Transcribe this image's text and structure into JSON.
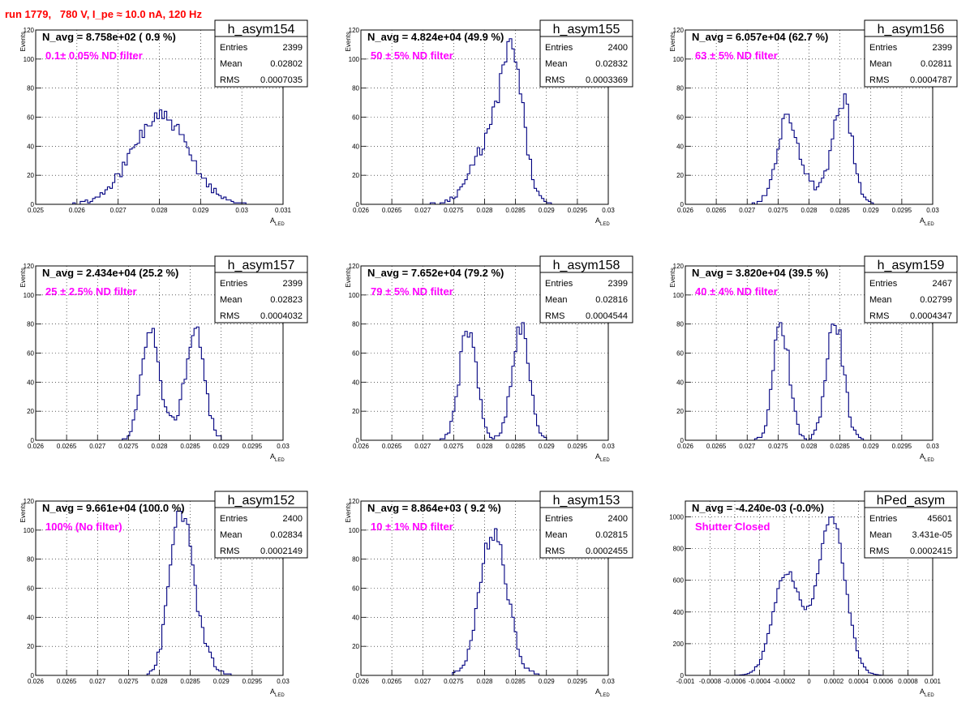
{
  "run_title": "run 1779,   780 V, I_pe ≈ 10.0 nA, 120 Hz",
  "colors": {
    "histogram": "#000080",
    "annotation": "#ff00ff",
    "title": "#ff0000",
    "grid": "#000000"
  },
  "stats_labels": {
    "entries": "Entries",
    "mean": "Mean",
    "rms": "RMS"
  },
  "chart_data": [
    {
      "type": "histogram",
      "hist_name": "h_asym154",
      "n_avg": "N_avg = 8.758e+02 ( 0.9 %)",
      "annotation": "0.1± 0.05% ND filter",
      "entries": "2399",
      "mean": "0.02802",
      "rms": "0.0007035",
      "xlabel": "A",
      "xlabel_sub": "LED",
      "ylabel": "Events",
      "xlim": [
        0.025,
        0.031
      ],
      "ylim": [
        0,
        120
      ],
      "xticks": [
        "0.025",
        "0.026",
        "0.027",
        "0.028",
        "0.029",
        "0.03",
        "0.031"
      ],
      "yticks": [
        "0",
        "20",
        "40",
        "60",
        "80",
        "100",
        "120"
      ],
      "grid": true,
      "mean_value": 0.02802,
      "rms_value": 0.0007035,
      "peak": 67,
      "peaks": [
        {
          "mu": 0.02802,
          "sigma": 0.00068,
          "h": 60
        }
      ],
      "seed": 154
    },
    {
      "type": "histogram",
      "hist_name": "h_asym155",
      "n_avg": "N_avg = 4.824e+04 (49.9 %)",
      "annotation": "50 ± 5% ND filter",
      "entries": "2400",
      "mean": "0.02832",
      "rms": "0.0003369",
      "xlabel": "A",
      "xlabel_sub": "LED",
      "ylabel": "Events",
      "xlim": [
        0.026,
        0.03
      ],
      "ylim": [
        0,
        120
      ],
      "xticks": [
        "0.026",
        "0.0265",
        "0.027",
        "0.0275",
        "0.028",
        "0.0285",
        "0.029",
        "0.0295",
        "0.03"
      ],
      "yticks": [
        "0",
        "20",
        "40",
        "60",
        "80",
        "100",
        "120"
      ],
      "grid": true,
      "peaks": [
        {
          "mu": 0.02845,
          "sigma": 0.00018,
          "h": 85
        },
        {
          "mu": 0.0281,
          "sigma": 0.0003,
          "h": 42
        }
      ],
      "seed": 155
    },
    {
      "type": "histogram",
      "hist_name": "h_asym156",
      "n_avg": "N_avg = 6.057e+04 (62.7 %)",
      "annotation": "63 ± 5% ND filter",
      "entries": "2399",
      "mean": "0.02811",
      "rms": "0.0004787",
      "xlabel": "A",
      "xlabel_sub": "LED",
      "ylabel": "Events",
      "xlim": [
        0.026,
        0.03
      ],
      "ylim": [
        0,
        120
      ],
      "xticks": [
        "0.026",
        "0.0265",
        "0.027",
        "0.0275",
        "0.028",
        "0.0285",
        "0.029",
        "0.0295",
        "0.03"
      ],
      "yticks": [
        "0",
        "20",
        "40",
        "60",
        "80",
        "100",
        "120"
      ],
      "grid": true,
      "peaks": [
        {
          "mu": 0.02765,
          "sigma": 0.00017,
          "h": 58
        },
        {
          "mu": 0.02855,
          "sigma": 0.00015,
          "h": 68
        },
        {
          "mu": 0.0281,
          "sigma": 0.0003,
          "h": 10
        }
      ],
      "seed": 156
    },
    {
      "type": "histogram",
      "hist_name": "h_asym157",
      "n_avg": "N_avg = 2.434e+04 (25.2 %)",
      "annotation": "25 ± 2.5% ND filter",
      "entries": "2399",
      "mean": "0.02823",
      "rms": "0.0004032",
      "xlabel": "A",
      "xlabel_sub": "LED",
      "ylabel": "Events",
      "xlim": [
        0.026,
        0.03
      ],
      "ylim": [
        0,
        120
      ],
      "xticks": [
        "0.026",
        "0.0265",
        "0.027",
        "0.0275",
        "0.028",
        "0.0285",
        "0.029",
        "0.0295",
        "0.03"
      ],
      "yticks": [
        "0",
        "20",
        "40",
        "60",
        "80",
        "100",
        "120"
      ],
      "grid": true,
      "peaks": [
        {
          "mu": 0.02785,
          "sigma": 0.00014,
          "h": 70
        },
        {
          "mu": 0.02858,
          "sigma": 0.00015,
          "h": 72
        },
        {
          "mu": 0.0282,
          "sigma": 0.0003,
          "h": 8
        }
      ],
      "seed": 157
    },
    {
      "type": "histogram",
      "hist_name": "h_asym158",
      "n_avg": "N_avg = 7.652e+04 (79.2 %)",
      "annotation": "79 ± 5% ND filter",
      "entries": "2399",
      "mean": "0.02816",
      "rms": "0.0004544",
      "xlabel": "A",
      "xlabel_sub": "LED",
      "ylabel": "Events",
      "xlim": [
        0.026,
        0.03
      ],
      "ylim": [
        0,
        120
      ],
      "xticks": [
        "0.026",
        "0.0265",
        "0.027",
        "0.0275",
        "0.028",
        "0.0285",
        "0.029",
        "0.0295",
        "0.03"
      ],
      "yticks": [
        "0",
        "20",
        "40",
        "60",
        "80",
        "100",
        "120"
      ],
      "grid": true,
      "peaks": [
        {
          "mu": 0.02773,
          "sigma": 0.00014,
          "h": 76
        },
        {
          "mu": 0.02858,
          "sigma": 0.00014,
          "h": 78
        }
      ],
      "seed": 158
    },
    {
      "type": "histogram",
      "hist_name": "h_asym159",
      "n_avg": "N_avg = 3.820e+04 (39.5 %)",
      "annotation": "40 ± 4% ND filter",
      "entries": "2467",
      "mean": "0.02799",
      "rms": "0.0004347",
      "xlabel": "A",
      "xlabel_sub": "LED",
      "ylabel": "Events",
      "xlim": [
        0.026,
        0.03
      ],
      "ylim": [
        0,
        120
      ],
      "xticks": [
        "0.026",
        "0.0265",
        "0.027",
        "0.0275",
        "0.028",
        "0.0285",
        "0.029",
        "0.0295",
        "0.03"
      ],
      "yticks": [
        "0",
        "20",
        "40",
        "60",
        "80",
        "100",
        "120"
      ],
      "grid": true,
      "peaks": [
        {
          "mu": 0.02755,
          "sigma": 0.00013,
          "h": 80
        },
        {
          "mu": 0.02842,
          "sigma": 0.00014,
          "h": 82
        }
      ],
      "seed": 159
    },
    {
      "type": "histogram",
      "hist_name": "h_asym152",
      "n_avg": "N_avg = 9.661e+04 (100.0 %)",
      "annotation": "100% (No filter)",
      "entries": "2400",
      "mean": "0.02834",
      "rms": "0.0002149",
      "xlabel": "A",
      "xlabel_sub": "LED",
      "ylabel": "Events",
      "xlim": [
        0.026,
        0.03
      ],
      "ylim": [
        0,
        120
      ],
      "xticks": [
        "0.026",
        "0.0265",
        "0.027",
        "0.0275",
        "0.028",
        "0.0285",
        "0.029",
        "0.0295",
        "0.03"
      ],
      "yticks": [
        "0",
        "20",
        "40",
        "60",
        "80",
        "100",
        "120"
      ],
      "grid": true,
      "peaks": [
        {
          "mu": 0.02832,
          "sigma": 0.00017,
          "h": 98
        },
        {
          "mu": 0.02855,
          "sigma": 0.0002,
          "h": 30
        }
      ],
      "seed": 152
    },
    {
      "type": "histogram",
      "hist_name": "h_asym153",
      "n_avg": "N_avg = 8.864e+03 ( 9.2 %)",
      "annotation": "10 ± 1% ND filter",
      "entries": "2400",
      "mean": "0.02815",
      "rms": "0.0002455",
      "xlabel": "A",
      "xlabel_sub": "LED",
      "ylabel": "Events",
      "xlim": [
        0.026,
        0.03
      ],
      "ylim": [
        0,
        120
      ],
      "xticks": [
        "0.026",
        "0.0265",
        "0.027",
        "0.0275",
        "0.028",
        "0.0285",
        "0.029",
        "0.0295",
        "0.03"
      ],
      "yticks": [
        "0",
        "20",
        "40",
        "60",
        "80",
        "100",
        "120"
      ],
      "grid": true,
      "peaks": [
        {
          "mu": 0.02815,
          "sigma": 0.00022,
          "h": 100
        }
      ],
      "seed": 153
    },
    {
      "type": "histogram",
      "hist_name": "hPed_asym",
      "n_avg": "N_avg = -4.240e-03 (-0.0%)",
      "annotation": "Shutter Closed",
      "entries": "45601",
      "mean": "3.431e-05",
      "rms": "0.0002415",
      "xlabel": "A",
      "xlabel_sub": "LED",
      "ylabel": "",
      "xlim": [
        -0.001,
        0.001
      ],
      "ylim": [
        0,
        1100
      ],
      "xticks": [
        "-0.001",
        "-0.0008",
        "-0.0006",
        "-0.0004",
        "-0.0002",
        "0",
        "0.0002",
        "0.0004",
        "0.0006",
        "0.0008",
        "0.001"
      ],
      "yticks": [
        "0",
        "200",
        "400",
        "600",
        "800",
        "1000"
      ],
      "grid": true,
      "peaks": [
        {
          "mu": -0.00018,
          "sigma": 0.00011,
          "h": 650
        },
        {
          "mu": 0.00018,
          "sigma": 0.00011,
          "h": 1000
        }
      ],
      "seed": 160
    }
  ]
}
